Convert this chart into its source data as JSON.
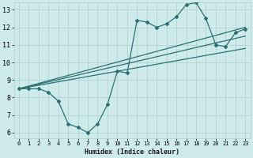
{
  "title": "",
  "xlabel": "Humidex (Indice chaleur)",
  "bg_color": "#ceeaea",
  "grid_color": "#aed0d0",
  "line_color": "#2a7070",
  "xlim": [
    -0.5,
    23.5
  ],
  "ylim": [
    5.7,
    13.4
  ],
  "xticks": [
    0,
    1,
    2,
    3,
    4,
    5,
    6,
    7,
    8,
    9,
    10,
    11,
    12,
    13,
    14,
    15,
    16,
    17,
    18,
    19,
    20,
    21,
    22,
    23
  ],
  "yticks": [
    6,
    7,
    8,
    9,
    10,
    11,
    12,
    13
  ],
  "line1_x": [
    0,
    1,
    2,
    3,
    4,
    5,
    6,
    7,
    8,
    9,
    10,
    11,
    12,
    13,
    14,
    15,
    16,
    17,
    18,
    19,
    20,
    21,
    22,
    23
  ],
  "line1_y": [
    8.5,
    8.5,
    8.5,
    8.3,
    7.8,
    6.5,
    6.3,
    6.0,
    6.5,
    7.6,
    9.5,
    9.4,
    12.4,
    12.3,
    12.0,
    12.2,
    12.6,
    13.3,
    13.4,
    12.5,
    11.0,
    10.9,
    11.7,
    11.9
  ],
  "line2_x": [
    0,
    23
  ],
  "line2_y": [
    8.5,
    12.0
  ],
  "line3_x": [
    0,
    23
  ],
  "line3_y": [
    8.5,
    11.5
  ],
  "line4_x": [
    0,
    23
  ],
  "line4_y": [
    8.5,
    10.8
  ]
}
